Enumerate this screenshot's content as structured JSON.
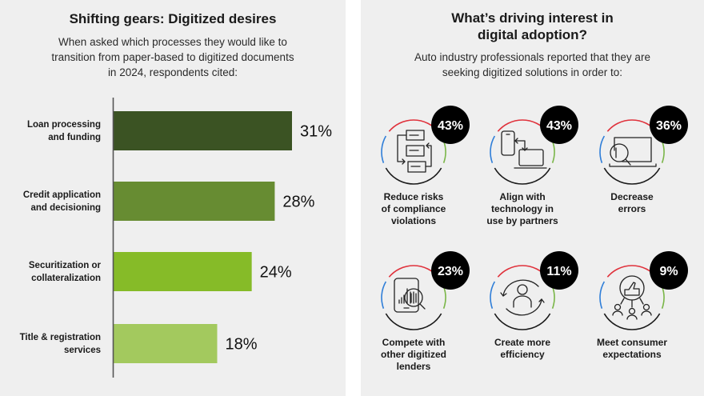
{
  "left": {
    "title": "Shifting gears: Digitized desires",
    "subtitle_lines": [
      "When asked which processes they would like to",
      "transition from paper-based to digitized documents",
      "in 2024, respondents cited:"
    ]
  },
  "right": {
    "title_lines": [
      "What’s driving interest in",
      "digital adoption?"
    ],
    "subtitle_lines": [
      "Auto industry professionals reported that they are",
      "seeking digitized solutions in order to:"
    ],
    "items": [
      {
        "percent": "43%",
        "value": 43,
        "icon": "document-flow-icon",
        "label_lines": [
          "Reduce risks",
          "of compliance",
          "violations"
        ]
      },
      {
        "percent": "43%",
        "value": 43,
        "icon": "phone-laptop-sync-icon",
        "label_lines": [
          "Align with",
          "technology in",
          "use by partners"
        ]
      },
      {
        "percent": "36%",
        "value": 36,
        "icon": "laptop-magnifier-icon",
        "label_lines": [
          "Decrease",
          "errors"
        ]
      },
      {
        "percent": "23%",
        "value": 23,
        "icon": "report-analysis-icon",
        "label_lines": [
          "Compete with",
          "other digitized",
          "lenders"
        ]
      },
      {
        "percent": "11%",
        "value": 11,
        "icon": "person-cycle-icon",
        "label_lines": [
          "Create more",
          "efficiency"
        ]
      },
      {
        "percent": "9%",
        "value": 9,
        "icon": "thumbs-up-people-icon",
        "label_lines": [
          "Meet consumer",
          "expectations"
        ]
      }
    ],
    "ring_colors": {
      "top": "#e0323c",
      "left": "#2f7ed8",
      "right": "#7ab648",
      "bottom": "#1a1a1a"
    },
    "badge_color": "#000000"
  },
  "chart_data": {
    "type": "bar",
    "orientation": "horizontal",
    "title": "Shifting gears: Digitized desires",
    "categories": [
      "Loan processing and funding",
      "Credit application and decisioning",
      "Securitization or collateralization",
      "Title & registration services"
    ],
    "category_lines": [
      [
        "Loan processing",
        "and funding"
      ],
      [
        "Credit application",
        "and decisioning"
      ],
      [
        "Securitization or",
        "collateralization"
      ],
      [
        "Title & registration",
        "services"
      ]
    ],
    "values": [
      31,
      28,
      24,
      18
    ],
    "value_labels": [
      "31%",
      "28%",
      "24%",
      "18%"
    ],
    "colors": [
      "#3b5323",
      "#678c32",
      "#86bb28",
      "#a3c95e"
    ],
    "xlabel": "",
    "ylabel": "",
    "xlim": [
      0,
      31
    ],
    "grid": false,
    "legend": "none"
  }
}
